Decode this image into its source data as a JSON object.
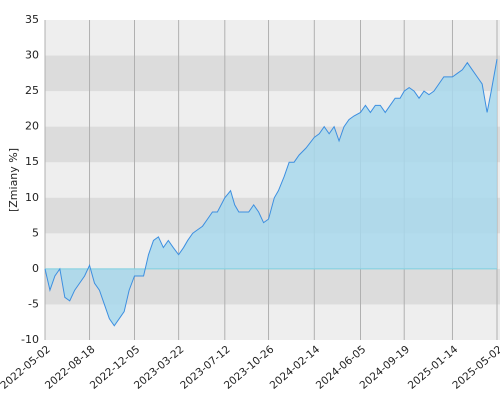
{
  "chart_data": {
    "type": "area",
    "y_label": "[Zmiany %]",
    "x": [
      "2022-05-02",
      "2022-05-14",
      "2022-05-26",
      "2022-06-07",
      "2022-06-19",
      "2022-07-01",
      "2022-07-13",
      "2022-07-25",
      "2022-08-06",
      "2022-08-18",
      "2022-08-30",
      "2022-09-11",
      "2022-09-23",
      "2022-10-05",
      "2022-10-17",
      "2022-10-29",
      "2022-11-10",
      "2022-11-22",
      "2022-12-05",
      "2022-12-15",
      "2022-12-27",
      "2023-01-08",
      "2023-01-20",
      "2023-02-01",
      "2023-02-13",
      "2023-02-25",
      "2023-03-09",
      "2023-03-22",
      "2023-04-03",
      "2023-04-13",
      "2023-04-25",
      "2023-05-07",
      "2023-05-19",
      "2023-05-31",
      "2023-06-12",
      "2023-06-24",
      "2023-07-12",
      "2023-07-26",
      "2023-08-05",
      "2023-08-15",
      "2023-08-27",
      "2023-09-08",
      "2023-09-20",
      "2023-10-02",
      "2023-10-14",
      "2023-10-26",
      "2023-11-09",
      "2023-11-19",
      "2023-12-03",
      "2023-12-15",
      "2023-12-27",
      "2024-01-08",
      "2024-01-25",
      "2024-02-14",
      "2024-02-26",
      "2024-03-09",
      "2024-03-21",
      "2024-04-02",
      "2024-04-14",
      "2024-04-26",
      "2024-05-08",
      "2024-05-20",
      "2024-06-05",
      "2024-06-17",
      "2024-06-29",
      "2024-07-11",
      "2024-07-23",
      "2024-08-04",
      "2024-08-16",
      "2024-08-28",
      "2024-09-09",
      "2024-09-19",
      "2024-10-01",
      "2024-10-13",
      "2024-10-25",
      "2024-11-06",
      "2024-11-18",
      "2024-11-30",
      "2024-12-12",
      "2024-12-24",
      "2025-01-14",
      "2025-01-26",
      "2025-02-07",
      "2025-02-19",
      "2025-03-03",
      "2025-03-15",
      "2025-03-27",
      "2025-04-08",
      "2025-04-18",
      "2025-05-02"
    ],
    "series": [
      {
        "color": "#3d8fe0",
        "fill": "#a8d8ec",
        "values": [
          0,
          -3,
          -1,
          0,
          -4,
          -4.5,
          -3,
          -2,
          -1,
          0.5,
          -2,
          -3,
          -5,
          -7,
          -8,
          -7,
          -6,
          -3,
          -1,
          -1,
          -1,
          2,
          4,
          4.5,
          3,
          4,
          3,
          2,
          3,
          4,
          5,
          5.5,
          6,
          7,
          8,
          8,
          10,
          11,
          9,
          8,
          8,
          8,
          9,
          8,
          6.5,
          7,
          10,
          11,
          13,
          15,
          15,
          16,
          17,
          18.5,
          19,
          20,
          19,
          20,
          18,
          20,
          21,
          21.5,
          22,
          23,
          22,
          23,
          23,
          22,
          23,
          24,
          24,
          25,
          25.5,
          25,
          24,
          25,
          24.5,
          25,
          26,
          27,
          27,
          27.5,
          28,
          29,
          28,
          27,
          26,
          22,
          25,
          29.5
        ]
      }
    ],
    "xlim": [
      "2022-05-02",
      "2025-05-02"
    ],
    "xticks": [
      "2022-05-02",
      "2022-08-18",
      "2022-12-05",
      "2023-03-22",
      "2023-07-12",
      "2023-10-26",
      "2024-02-14",
      "2024-06-05",
      "2024-09-19",
      "2025-01-14",
      "2025-05-02"
    ],
    "ylim": [
      -10,
      35
    ],
    "yticks": [
      -10,
      -5,
      0,
      5,
      10,
      15,
      20,
      25,
      30,
      35
    ],
    "grid": true
  }
}
